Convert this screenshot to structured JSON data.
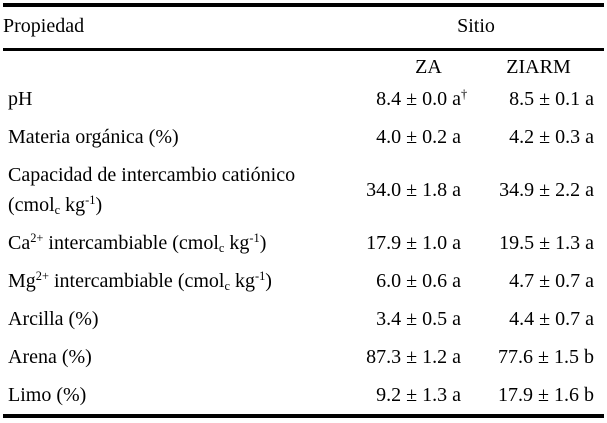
{
  "colors": {
    "background": "#ffffff",
    "text": "#000000",
    "rule": "#000000"
  },
  "table": {
    "header": {
      "property": "Propiedad",
      "site_group": "Sitio",
      "site_columns": [
        "ZA",
        "ZIARM"
      ]
    },
    "rows": [
      {
        "property": [
          [
            {
              "t": "pH"
            }
          ]
        ],
        "za": [
          {
            "t": "8.4 ± 0.0 a"
          },
          {
            "t": "†",
            "s": "dagger"
          }
        ],
        "ziarm": [
          {
            "t": "8.5 ± 0.1 a"
          }
        ]
      },
      {
        "property": [
          [
            {
              "t": "Materia orgánica (%)"
            }
          ]
        ],
        "za": [
          {
            "t": "4.0 ± 0.2 a"
          }
        ],
        "ziarm": [
          {
            "t": "4.2 ± 0.3 a"
          }
        ]
      },
      {
        "property": [
          [
            {
              "t": "Capacidad de intercambio catiónico"
            }
          ],
          [
            {
              "t": "(cmol"
            },
            {
              "t": "c",
              "s": "sub"
            },
            {
              "t": " kg"
            },
            {
              "t": "-1",
              "s": "sup"
            },
            {
              "t": ")"
            }
          ]
        ],
        "za": [
          {
            "t": "34.0 ± 1.8 a"
          }
        ],
        "ziarm": [
          {
            "t": "34.9 ± 2.2 a"
          }
        ]
      },
      {
        "property": [
          [
            {
              "t": "Ca"
            },
            {
              "t": "2+",
              "s": "sup"
            },
            {
              "t": " intercambiable (cmol"
            },
            {
              "t": "c",
              "s": "sub"
            },
            {
              "t": " kg"
            },
            {
              "t": "-1",
              "s": "sup"
            },
            {
              "t": ")"
            }
          ]
        ],
        "za": [
          {
            "t": "17.9 ± 1.0 a"
          }
        ],
        "ziarm": [
          {
            "t": "19.5 ± 1.3 a"
          }
        ]
      },
      {
        "property": [
          [
            {
              "t": "Mg"
            },
            {
              "t": "2+",
              "s": "sup"
            },
            {
              "t": " intercambiable (cmol"
            },
            {
              "t": "c",
              "s": "sub"
            },
            {
              "t": " kg"
            },
            {
              "t": "-1",
              "s": "sup"
            },
            {
              "t": ")"
            }
          ]
        ],
        "za": [
          {
            "t": "6.0 ± 0.6 a"
          }
        ],
        "ziarm": [
          {
            "t": "4.7 ± 0.7 a"
          }
        ]
      },
      {
        "property": [
          [
            {
              "t": "Arcilla (%)"
            }
          ]
        ],
        "za": [
          {
            "t": "3.4 ± 0.5 a"
          }
        ],
        "ziarm": [
          {
            "t": "4.4 ± 0.7 a"
          }
        ]
      },
      {
        "property": [
          [
            {
              "t": "Arena (%)"
            }
          ]
        ],
        "za": [
          {
            "t": "87.3 ± 1.2 a"
          }
        ],
        "ziarm": [
          {
            "t": "77.6 ± 1.5 b"
          }
        ]
      },
      {
        "property": [
          [
            {
              "t": "Limo (%)"
            }
          ]
        ],
        "za": [
          {
            "t": "9.2 ± 1.3 a"
          }
        ],
        "ziarm": [
          {
            "t": "17.9 ± 1.6 b"
          }
        ]
      }
    ]
  }
}
